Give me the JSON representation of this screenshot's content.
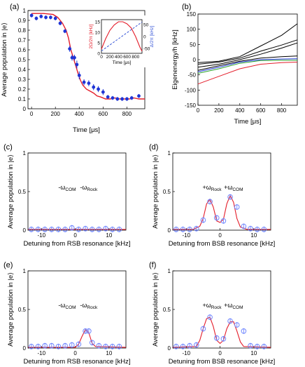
{
  "panels": {
    "a": {
      "label": "(a)",
      "ylabel": "Average population in |e⟩",
      "xlabel": "Time [μs]",
      "xticks": [
        "0",
        "200",
        "400",
        "600",
        "800"
      ],
      "yticks": [
        "0",
        "0.1",
        "0.2",
        "0.3",
        "0.4",
        "0.5",
        "0.6",
        "0.7",
        "0.8",
        "0.9",
        "1"
      ],
      "inset": {
        "ylabel_left": "2Ω/2π [kHz]",
        "ylabel_right": "Δ/2π [kHz]",
        "xlabel": "Time [μs]",
        "xticks": [
          "0",
          "200",
          "400",
          "600",
          "800"
        ],
        "yticks_left": [
          "0",
          "5",
          "10",
          "15"
        ],
        "yticks_right": [
          "-50",
          "0",
          "50"
        ]
      }
    },
    "b": {
      "label": "(b)",
      "ylabel": "Eigenenergy/h [kHz]",
      "xlabel": "Time [μs]",
      "xticks": [
        "0",
        "200",
        "400",
        "600",
        "800"
      ],
      "yticks": [
        "-150",
        "-100",
        "-50",
        "0",
        "50",
        "100",
        "150"
      ]
    },
    "c": {
      "label": "(c)",
      "ylabel": "Average population in |e⟩",
      "xlabel": "Detuning from RSB resonance [kHz]",
      "xticks": [
        "-10",
        "0",
        "10"
      ],
      "yticks": [
        "0",
        "0.5",
        "1"
      ],
      "ann": [
        {
          "pre": "-ω",
          "sub": "COM"
        },
        {
          "pre": "-ω",
          "sub": "Rock"
        }
      ]
    },
    "d": {
      "label": "(d)",
      "ylabel": "Average population in |e⟩",
      "xlabel": "Detuning from BSB resonance [kHz]",
      "xticks": [
        "-10",
        "0",
        "10"
      ],
      "yticks": [
        "0",
        "0.5",
        "1"
      ],
      "ann": [
        {
          "pre": "+ω",
          "sub": "Rock"
        },
        {
          "pre": "+ω",
          "sub": "COM"
        }
      ]
    },
    "e": {
      "label": "(e)",
      "ylabel": "Average population in |e⟩",
      "xlabel": "Detuning from RSB resonance [kHz]",
      "xticks": [
        "-10",
        "0",
        "10"
      ],
      "yticks": [
        "0",
        "0.5",
        "1"
      ],
      "ann": [
        {
          "pre": "-ω",
          "sub": "COM"
        },
        {
          "pre": "-ω",
          "sub": "Rock"
        }
      ]
    },
    "f": {
      "label": "(f)",
      "ylabel": "Average population in |e⟩",
      "xlabel": "Detuning from BSB resonance [kHz]",
      "xticks": [
        "-10",
        "0",
        "10"
      ],
      "yticks": [
        "0",
        "0.5",
        "1"
      ],
      "ann": [
        {
          "pre": "+ω",
          "sub": "Rock"
        },
        {
          "pre": "+ω",
          "sub": "COM"
        }
      ]
    }
  },
  "colors": {
    "data_blue": "#1f35d6",
    "circle_blue": "#6f86ff",
    "theory_red": "#e41d2a",
    "inset_blue": "#3a58d8"
  },
  "chart_data": [
    {
      "panel": "a",
      "type": "scatter",
      "xlim": [
        -30,
        950
      ],
      "ylim": [
        0,
        1
      ],
      "points": [
        [
          0,
          0.95,
          0.02
        ],
        [
          40,
          0.92,
          0.02
        ],
        [
          80,
          0.94,
          0.02
        ],
        [
          120,
          0.93,
          0.02
        ],
        [
          160,
          0.93,
          0.02
        ],
        [
          200,
          0.92,
          0.02
        ],
        [
          240,
          0.87,
          0.02
        ],
        [
          280,
          0.79,
          0.02
        ],
        [
          320,
          0.61,
          0.03
        ],
        [
          340,
          0.52,
          0.03
        ],
        [
          360,
          0.52,
          0.03
        ],
        [
          380,
          0.45,
          0.04
        ],
        [
          400,
          0.34,
          0.04
        ],
        [
          440,
          0.27,
          0.03
        ],
        [
          480,
          0.26,
          0.03
        ],
        [
          520,
          0.22,
          0.03
        ],
        [
          560,
          0.2,
          0.03
        ],
        [
          600,
          0.17,
          0.03
        ],
        [
          640,
          0.12,
          0.02
        ],
        [
          680,
          0.11,
          0.02
        ],
        [
          720,
          0.1,
          0.02
        ],
        [
          760,
          0.1,
          0.02
        ],
        [
          800,
          0.1,
          0.02
        ],
        [
          840,
          0.11,
          0.02
        ],
        [
          900,
          0.13,
          0.02
        ]
      ],
      "theory": [
        [
          0,
          0.97
        ],
        [
          100,
          0.97
        ],
        [
          180,
          0.96
        ],
        [
          220,
          0.93
        ],
        [
          260,
          0.87
        ],
        [
          290,
          0.8
        ],
        [
          310,
          0.72
        ],
        [
          330,
          0.6
        ],
        [
          350,
          0.52
        ],
        [
          370,
          0.44
        ],
        [
          390,
          0.36
        ],
        [
          410,
          0.29
        ],
        [
          430,
          0.24
        ],
        [
          460,
          0.2
        ],
        [
          490,
          0.18
        ],
        [
          520,
          0.16
        ],
        [
          550,
          0.13
        ],
        [
          580,
          0.12
        ],
        [
          620,
          0.1
        ],
        [
          660,
          0.1
        ],
        [
          700,
          0.11
        ],
        [
          740,
          0.1
        ],
        [
          780,
          0.1
        ],
        [
          820,
          0.1
        ],
        [
          860,
          0.11
        ],
        [
          900,
          0.1
        ],
        [
          950,
          0.1
        ]
      ],
      "inset": {
        "omega": [
          [
            0,
            2
          ],
          [
            100,
            7
          ],
          [
            200,
            11
          ],
          [
            300,
            13.5
          ],
          [
            400,
            15
          ],
          [
            500,
            15
          ],
          [
            600,
            14
          ],
          [
            700,
            12
          ],
          [
            800,
            8
          ],
          [
            900,
            3
          ],
          [
            950,
            1
          ]
        ],
        "delta": [
          [
            0,
            -60
          ],
          [
            950,
            60
          ]
        ]
      }
    },
    {
      "panel": "b",
      "type": "line",
      "xlim": [
        0,
        950
      ],
      "ylim": [
        -150,
        150
      ],
      "series": [
        {
          "color": "#000",
          "values": [
            [
              0,
              -10
            ],
            [
              200,
              -5
            ],
            [
              400,
              10
            ],
            [
              600,
              45
            ],
            [
              800,
              80
            ],
            [
              950,
              118
            ]
          ]
        },
        {
          "color": "#000",
          "values": [
            [
              0,
              -15
            ],
            [
              200,
              -8
            ],
            [
              400,
              5
            ],
            [
              600,
              28
            ],
            [
              800,
              48
            ],
            [
              950,
              65
            ]
          ]
        },
        {
          "color": "#000",
          "values": [
            [
              0,
              -25
            ],
            [
              200,
              -15
            ],
            [
              400,
              0
            ],
            [
              600,
              18
            ],
            [
              800,
              38
            ],
            [
              950,
              55
            ]
          ]
        },
        {
          "color": "#000",
          "values": [
            [
              0,
              -35
            ],
            [
              200,
              -20
            ],
            [
              400,
              -5
            ],
            [
              600,
              5
            ],
            [
              800,
              10
            ],
            [
              950,
              12
            ]
          ]
        },
        {
          "color": "#1f35d6",
          "values": [
            [
              0,
              -40
            ],
            [
              200,
              -25
            ],
            [
              400,
              -8
            ],
            [
              600,
              0
            ],
            [
              800,
              2
            ],
            [
              950,
              3
            ]
          ]
        },
        {
          "color": "#2aa02a",
          "values": [
            [
              0,
              -45
            ],
            [
              200,
              -30
            ],
            [
              400,
              -12
            ],
            [
              600,
              -3
            ],
            [
              800,
              -2
            ],
            [
              950,
              -2
            ]
          ]
        },
        {
          "color": "#e41d2a",
          "values": [
            [
              0,
              -80
            ],
            [
              200,
              -55
            ],
            [
              400,
              -30
            ],
            [
              600,
              -15
            ],
            [
              800,
              -10
            ],
            [
              950,
              -8
            ]
          ]
        }
      ]
    },
    {
      "panel": "c",
      "type": "scatter",
      "xlim": [
        -14,
        15
      ],
      "ylim": [
        0,
        1
      ],
      "points": [
        [
          -13,
          0.01
        ],
        [
          -11,
          0.01
        ],
        [
          -9,
          0.01
        ],
        [
          -7,
          0.01
        ],
        [
          -5,
          0.01
        ],
        [
          -3,
          0.01
        ],
        [
          -1,
          0.03
        ],
        [
          1,
          0.01
        ],
        [
          3,
          0.02
        ],
        [
          5,
          0.01
        ],
        [
          7,
          0.01
        ],
        [
          9,
          0.02
        ],
        [
          11,
          0.01
        ],
        [
          13,
          0.01
        ]
      ],
      "theory": [
        [
          -14,
          0.01
        ],
        [
          15,
          0.01
        ]
      ]
    },
    {
      "panel": "d",
      "type": "scatter",
      "xlim": [
        -14,
        15
      ],
      "ylim": [
        0,
        1
      ],
      "points": [
        [
          -13,
          0.01
        ],
        [
          -11,
          0.01
        ],
        [
          -9,
          0.01
        ],
        [
          -7,
          0.02
        ],
        [
          -5,
          0.13
        ],
        [
          -3,
          0.37
        ],
        [
          -1,
          0.16
        ],
        [
          1,
          0.12
        ],
        [
          3,
          0.43
        ],
        [
          5,
          0.3
        ],
        [
          7,
          0.05
        ],
        [
          9,
          0.02
        ],
        [
          11,
          0.01
        ],
        [
          13,
          0.01
        ]
      ],
      "theory": [
        [
          -14,
          0.01
        ],
        [
          -8,
          0.01
        ],
        [
          -6,
          0.05
        ],
        [
          -5,
          0.15
        ],
        [
          -4,
          0.34
        ],
        [
          -3,
          0.4
        ],
        [
          -2,
          0.3
        ],
        [
          -1,
          0.12
        ],
        [
          0,
          0.1
        ],
        [
          1,
          0.14
        ],
        [
          2,
          0.34
        ],
        [
          3,
          0.45
        ],
        [
          4,
          0.36
        ],
        [
          5,
          0.15
        ],
        [
          6,
          0.04
        ],
        [
          8,
          0.01
        ],
        [
          15,
          0.01
        ]
      ]
    },
    {
      "panel": "e",
      "type": "scatter",
      "xlim": [
        -14,
        15
      ],
      "ylim": [
        0,
        1
      ],
      "points": [
        [
          -13,
          0.02
        ],
        [
          -11,
          0.02
        ],
        [
          -9,
          0.03
        ],
        [
          -7,
          0.03
        ],
        [
          -5,
          0.02
        ],
        [
          -3,
          0.03
        ],
        [
          -1,
          0.04
        ],
        [
          1,
          0.05
        ],
        [
          3,
          0.22
        ],
        [
          4,
          0.22
        ],
        [
          5,
          0.07
        ],
        [
          7,
          0.03
        ],
        [
          9,
          0.02
        ],
        [
          11,
          0.02
        ],
        [
          13,
          0.02
        ]
      ],
      "theory": [
        [
          -14,
          0.01
        ],
        [
          0,
          0.01
        ],
        [
          1,
          0.05
        ],
        [
          2,
          0.15
        ],
        [
          3,
          0.24
        ],
        [
          4,
          0.2
        ],
        [
          5,
          0.06
        ],
        [
          6,
          0.02
        ],
        [
          15,
          0.01
        ]
      ]
    },
    {
      "panel": "f",
      "type": "scatter",
      "xlim": [
        -14,
        15
      ],
      "ylim": [
        0,
        1
      ],
      "points": [
        [
          -13,
          0.02
        ],
        [
          -11,
          0.02
        ],
        [
          -9,
          0.03
        ],
        [
          -7,
          0.04
        ],
        [
          -5,
          0.25
        ],
        [
          -3,
          0.4
        ],
        [
          -1,
          0.13
        ],
        [
          1,
          0.12
        ],
        [
          3,
          0.35
        ],
        [
          5,
          0.3
        ],
        [
          7,
          0.22
        ],
        [
          9,
          0.03
        ],
        [
          11,
          0.02
        ],
        [
          13,
          0.02
        ]
      ],
      "theory": [
        [
          -14,
          0.01
        ],
        [
          -7,
          0.02
        ],
        [
          -6,
          0.1
        ],
        [
          -5,
          0.25
        ],
        [
          -4,
          0.38
        ],
        [
          -3,
          0.4
        ],
        [
          -2,
          0.28
        ],
        [
          -1,
          0.1
        ],
        [
          0,
          0.06
        ],
        [
          1,
          0.1
        ],
        [
          2,
          0.25
        ],
        [
          3,
          0.34
        ],
        [
          4,
          0.34
        ],
        [
          5,
          0.22
        ],
        [
          6,
          0.08
        ],
        [
          7,
          0.02
        ],
        [
          15,
          0.01
        ]
      ]
    }
  ]
}
